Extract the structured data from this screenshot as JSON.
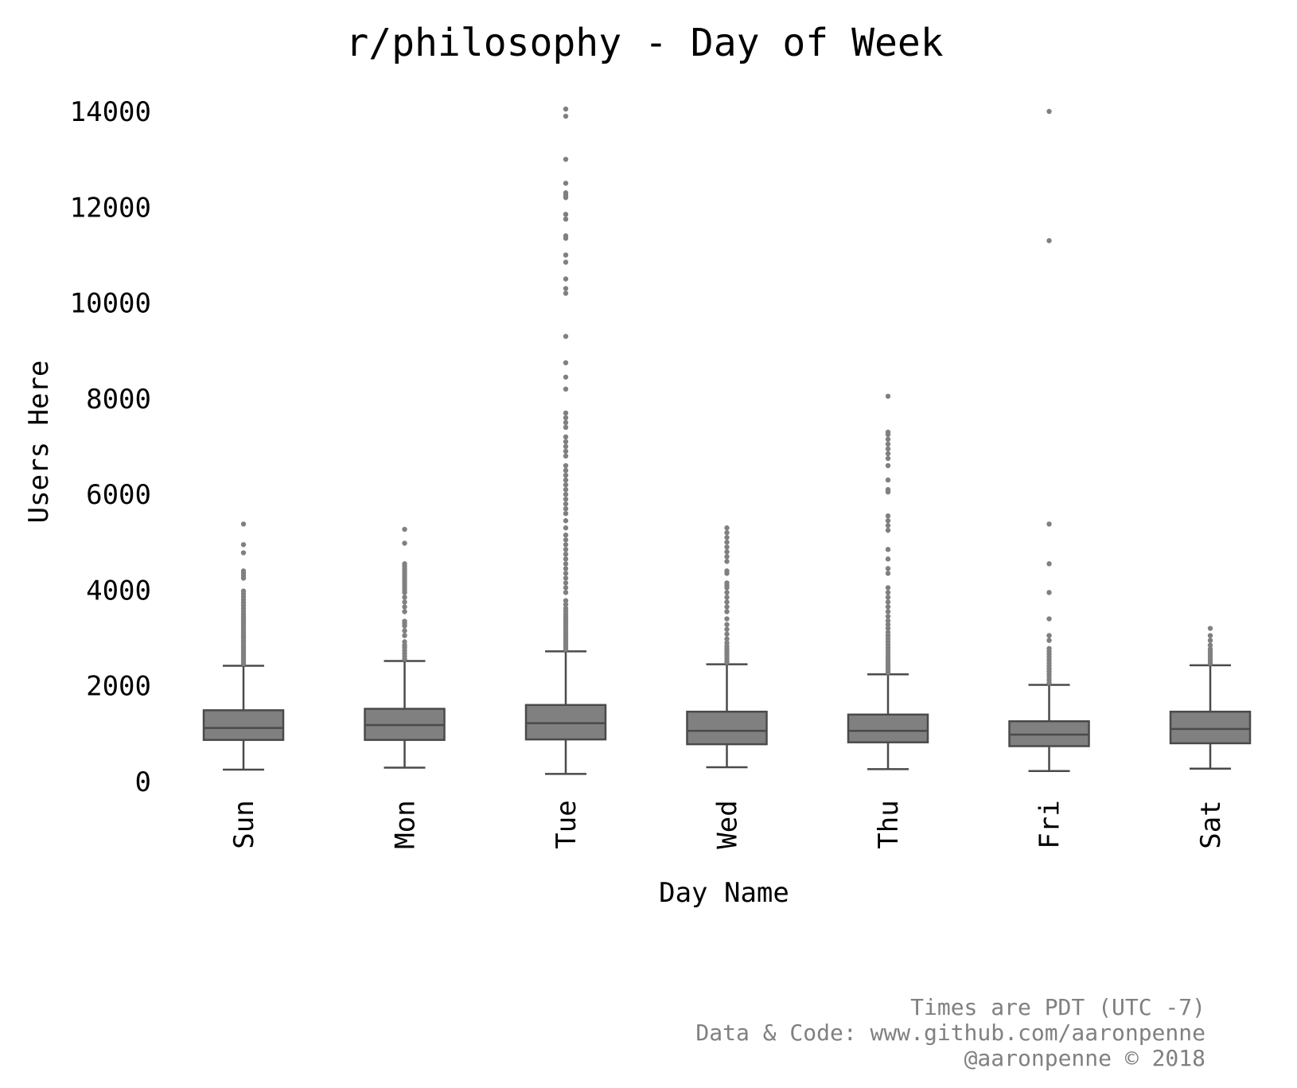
{
  "chart_data": {
    "type": "box",
    "title": "r/philosophy - Day of Week",
    "xlabel": "Day Name",
    "ylabel": "Users Here",
    "ylim": [
      -400,
      14400
    ],
    "yticks": [
      0,
      2000,
      4000,
      6000,
      8000,
      10000,
      12000,
      14000
    ],
    "ytick_labels": [
      "0",
      "2000",
      "4000",
      "6000",
      "8000",
      "10000",
      "12000",
      "14000"
    ],
    "categories": [
      "Sun",
      "Mon",
      "Tue",
      "Wed",
      "Thu",
      "Fri",
      "Sat"
    ],
    "grid": false,
    "legend": "none",
    "colors": {
      "box_fill": "#808080",
      "box_edge": "#4a4a4a",
      "flier": "#808080",
      "text": "#000000",
      "footer": "#808080"
    },
    "boxes": [
      {
        "category": "Sun",
        "whislo": 250,
        "q1": 870,
        "med": 1120,
        "q3": 1490,
        "whishi": 2420,
        "fliers": [
          2460,
          2500,
          2550,
          2600,
          2650,
          2700,
          2750,
          2800,
          2850,
          2900,
          2950,
          3000,
          3050,
          3100,
          3150,
          3200,
          3250,
          3300,
          3350,
          3400,
          3450,
          3500,
          3560,
          3620,
          3680,
          3740,
          3800,
          3860,
          3920,
          3980,
          4250,
          4300,
          4350,
          4400,
          4780,
          4950,
          5380
        ]
      },
      {
        "category": "Mon",
        "whislo": 290,
        "q1": 870,
        "med": 1180,
        "q3": 1520,
        "whishi": 2520,
        "fliers": [
          2560,
          2620,
          2680,
          2740,
          2800,
          2850,
          2920,
          3050,
          3150,
          3250,
          3300,
          3350,
          3550,
          3650,
          3750,
          3850,
          3950,
          4000,
          4050,
          4100,
          4150,
          4200,
          4250,
          4300,
          4350,
          4400,
          4450,
          4500,
          4550,
          4980,
          5270
        ]
      },
      {
        "category": "Tue",
        "whislo": 160,
        "q1": 880,
        "med": 1220,
        "q3": 1600,
        "whishi": 2720,
        "fliers": [
          2760,
          2800,
          2850,
          2900,
          2950,
          3000,
          3050,
          3100,
          3150,
          3200,
          3250,
          3300,
          3350,
          3400,
          3450,
          3500,
          3560,
          3620,
          3700,
          3780,
          3950,
          4050,
          4150,
          4250,
          4350,
          4450,
          4550,
          4650,
          4750,
          4850,
          4950,
          5050,
          5150,
          5300,
          5450,
          5600,
          5700,
          5800,
          5900,
          6000,
          6100,
          6200,
          6300,
          6400,
          6500,
          6600,
          6800,
          6900,
          7000,
          7100,
          7200,
          7400,
          7500,
          7600,
          7700,
          8200,
          8450,
          8750,
          9300,
          10200,
          10300,
          10500,
          10850,
          11000,
          11350,
          11400,
          11750,
          11850,
          12200,
          12250,
          12300,
          12500,
          13000,
          13900,
          14050
        ]
      },
      {
        "category": "Wed",
        "whislo": 300,
        "q1": 780,
        "med": 1060,
        "q3": 1460,
        "whishi": 2450,
        "fliers": [
          2490,
          2530,
          2580,
          2630,
          2680,
          2730,
          2780,
          2830,
          2900,
          2980,
          3080,
          3180,
          3280,
          3400,
          3550,
          3650,
          3750,
          3850,
          3950,
          4050,
          4100,
          4150,
          4350,
          4400,
          4600,
          4700,
          4800,
          4900,
          5000,
          5100,
          5200,
          5300
        ]
      },
      {
        "category": "Thu",
        "whislo": 260,
        "q1": 820,
        "med": 1060,
        "q3": 1400,
        "whishi": 2240,
        "fliers": [
          2280,
          2320,
          2370,
          2420,
          2470,
          2520,
          2570,
          2620,
          2680,
          2740,
          2800,
          2860,
          2920,
          2980,
          3050,
          3120,
          3200,
          3280,
          3360,
          3450,
          3550,
          3650,
          3750,
          3850,
          3950,
          4050,
          4350,
          4450,
          4650,
          4850,
          5250,
          5350,
          5450,
          5550,
          6050,
          6100,
          6300,
          6600,
          6750,
          6850,
          6950,
          7050,
          7150,
          7250,
          7300,
          8050
        ]
      },
      {
        "category": "Fri",
        "whislo": 220,
        "q1": 740,
        "med": 980,
        "q3": 1260,
        "whishi": 2020,
        "fliers": [
          2060,
          2120,
          2180,
          2240,
          2300,
          2360,
          2420,
          2480,
          2540,
          2600,
          2660,
          2720,
          2780,
          2950,
          3050,
          3400,
          3950,
          4550,
          5380,
          11300,
          14000
        ]
      },
      {
        "category": "Sat",
        "whislo": 270,
        "q1": 800,
        "med": 1100,
        "q3": 1460,
        "whishi": 2430,
        "fliers": [
          2470,
          2520,
          2570,
          2620,
          2670,
          2720,
          2770,
          2850,
          2950,
          3050,
          3200
        ]
      }
    ]
  },
  "footer": {
    "line1": "Times are PDT (UTC -7)",
    "line2": "Data & Code: www.github.com/aaronpenne",
    "line3": "@aaronpenne © 2018"
  }
}
